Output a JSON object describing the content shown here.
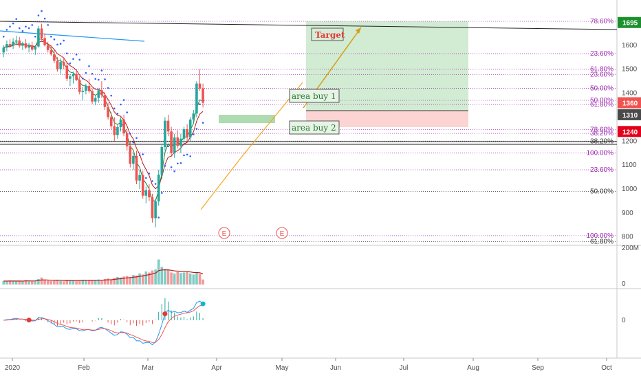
{
  "chart_data": [
    {
      "type": "candlestick",
      "panel": "price",
      "ylim": [
        760,
        1770
      ],
      "y_ticks": [
        800,
        900,
        1000,
        1100,
        1200,
        1300,
        1400,
        1500,
        1600
      ],
      "x_ticks": [
        "2020",
        "Feb",
        "Mar",
        "Apr",
        "May",
        "Jun",
        "Jul",
        "Aug",
        "Sep",
        "Oct"
      ],
      "price_badges": [
        {
          "value": 1695,
          "label": "1695",
          "color": "#1b8f2b"
        },
        {
          "value": 1360,
          "label": "1360",
          "color": "#ef5350"
        },
        {
          "value": 1310,
          "label": "1310",
          "color": "#4a4a4a"
        },
        {
          "value": 1240,
          "label": "1240",
          "color": "#e3001b"
        }
      ],
      "fib_levels": [
        {
          "label": "78.60%",
          "value": 1700,
          "color": "#9c27b0"
        },
        {
          "label": "23.60%",
          "value": 1565,
          "color": "#9c27b0"
        },
        {
          "label": "61.80%",
          "value": 1500,
          "color": "#9c27b0"
        },
        {
          "label": "23.60%",
          "value": 1478,
          "color": "#9c27b0"
        },
        {
          "label": "50.00%",
          "value": 1420,
          "color": "#9c27b0"
        },
        {
          "label": "50.00%",
          "value": 1370,
          "color": "#9c27b0"
        },
        {
          "label": "61.80%",
          "value": 1353,
          "color": "#9c27b0"
        },
        {
          "label": "78.60%",
          "value": 1248,
          "color": "#9c27b0"
        },
        {
          "label": "38.20%",
          "value": 1232,
          "color": "#9c27b0"
        },
        {
          "label": "38.20%",
          "value": 1200,
          "color": "#333333"
        },
        {
          "label": "100.00%",
          "value": 1150,
          "color": "#9c27b0"
        },
        {
          "label": "23.60%",
          "value": 1080,
          "color": "#9c27b0"
        },
        {
          "label": "50.00%",
          "value": 990,
          "color": "#333333"
        },
        {
          "label": "100.00%",
          "value": 805,
          "color": "#9c27b0"
        },
        {
          "label": "61.80%",
          "value": 780,
          "color": "#333333"
        }
      ],
      "annotations": [
        {
          "text": "Target",
          "color": "#e53935"
        },
        {
          "text": "area buy 1",
          "color": "#2e7d32"
        },
        {
          "text": "area buy 2",
          "color": "#2e7d32"
        }
      ],
      "earnings_marks": [
        "E",
        "E"
      ],
      "candles": [
        [
          1570,
          1600,
          1550,
          1590
        ],
        [
          1590,
          1620,
          1575,
          1605
        ],
        [
          1605,
          1625,
          1590,
          1600
        ],
        [
          1600,
          1630,
          1585,
          1615
        ],
        [
          1615,
          1640,
          1600,
          1620
        ],
        [
          1620,
          1635,
          1590,
          1598
        ],
        [
          1598,
          1615,
          1580,
          1608
        ],
        [
          1608,
          1625,
          1585,
          1590
        ],
        [
          1590,
          1610,
          1570,
          1600
        ],
        [
          1600,
          1615,
          1575,
          1582
        ],
        [
          1582,
          1600,
          1560,
          1595
        ],
        [
          1595,
          1680,
          1590,
          1670
        ],
        [
          1670,
          1690,
          1620,
          1630
        ],
        [
          1630,
          1650,
          1595,
          1600
        ],
        [
          1600,
          1615,
          1570,
          1580
        ],
        [
          1580,
          1600,
          1555,
          1562
        ],
        [
          1562,
          1580,
          1525,
          1535
        ],
        [
          1535,
          1550,
          1490,
          1500
        ],
        [
          1500,
          1545,
          1480,
          1530
        ],
        [
          1530,
          1550,
          1500,
          1515
        ],
        [
          1515,
          1530,
          1450,
          1460
        ],
        [
          1460,
          1480,
          1430,
          1470
        ],
        [
          1470,
          1490,
          1440,
          1480
        ],
        [
          1480,
          1500,
          1450,
          1455
        ],
        [
          1455,
          1470,
          1395,
          1405
        ],
        [
          1405,
          1425,
          1370,
          1410
        ],
        [
          1410,
          1440,
          1395,
          1430
        ],
        [
          1430,
          1460,
          1400,
          1408
        ],
        [
          1408,
          1420,
          1355,
          1365
        ],
        [
          1365,
          1390,
          1350,
          1380
        ],
        [
          1380,
          1420,
          1360,
          1412
        ],
        [
          1412,
          1450,
          1380,
          1392
        ],
        [
          1392,
          1405,
          1330,
          1342
        ],
        [
          1342,
          1360,
          1290,
          1300
        ],
        [
          1300,
          1320,
          1250,
          1262
        ],
        [
          1262,
          1300,
          1200,
          1225
        ],
        [
          1225,
          1270,
          1210,
          1258
        ],
        [
          1258,
          1300,
          1240,
          1290
        ],
        [
          1290,
          1310,
          1220,
          1232
        ],
        [
          1232,
          1250,
          1160,
          1178
        ],
        [
          1178,
          1195,
          1090,
          1105
        ],
        [
          1105,
          1150,
          1080,
          1138
        ],
        [
          1138,
          1160,
          1020,
          1035
        ],
        [
          1035,
          1080,
          1000,
          1058
        ],
        [
          1058,
          1075,
          960,
          972
        ],
        [
          972,
          1010,
          940,
          995
        ],
        [
          995,
          1020,
          950,
          965
        ],
        [
          965,
          980,
          860,
          878
        ],
        [
          878,
          960,
          840,
          948
        ],
        [
          948,
          1080,
          930,
          1060
        ],
        [
          1060,
          1190,
          1040,
          1175
        ],
        [
          1175,
          1300,
          1160,
          1285
        ],
        [
          1285,
          1310,
          1220,
          1240
        ],
        [
          1240,
          1260,
          1140,
          1150
        ],
        [
          1150,
          1230,
          1130,
          1215
        ],
        [
          1215,
          1245,
          1170,
          1180
        ],
        [
          1180,
          1230,
          1150,
          1210
        ],
        [
          1210,
          1260,
          1190,
          1250
        ],
        [
          1250,
          1270,
          1200,
          1215
        ],
        [
          1215,
          1300,
          1200,
          1290
        ],
        [
          1290,
          1330,
          1270,
          1315
        ],
        [
          1315,
          1450,
          1300,
          1440
        ],
        [
          1440,
          1500,
          1410,
          1420
        ],
        [
          1420,
          1440,
          1340,
          1360
        ]
      ],
      "x_range": [
        "2020",
        "Oct"
      ]
    },
    {
      "type": "bar",
      "panel": "volume",
      "y_ticks": [
        "200M",
        "0"
      ],
      "values": [
        14,
        12,
        16,
        13,
        15,
        14,
        12,
        18,
        15,
        13,
        16,
        22,
        28,
        20,
        15,
        14,
        16,
        19,
        14,
        13,
        18,
        16,
        15,
        14,
        17,
        19,
        16,
        15,
        18,
        16,
        20,
        17,
        22,
        24,
        20,
        26,
        30,
        28,
        32,
        34,
        30,
        38,
        36,
        44,
        40,
        52,
        48,
        56,
        60,
        100,
        70,
        62,
        58,
        48,
        44,
        50,
        46,
        48,
        52,
        44,
        40,
        46,
        42,
        20
      ]
    },
    {
      "type": "line",
      "panel": "oscillator",
      "y_ticks": [
        "0"
      ]
    }
  ]
}
